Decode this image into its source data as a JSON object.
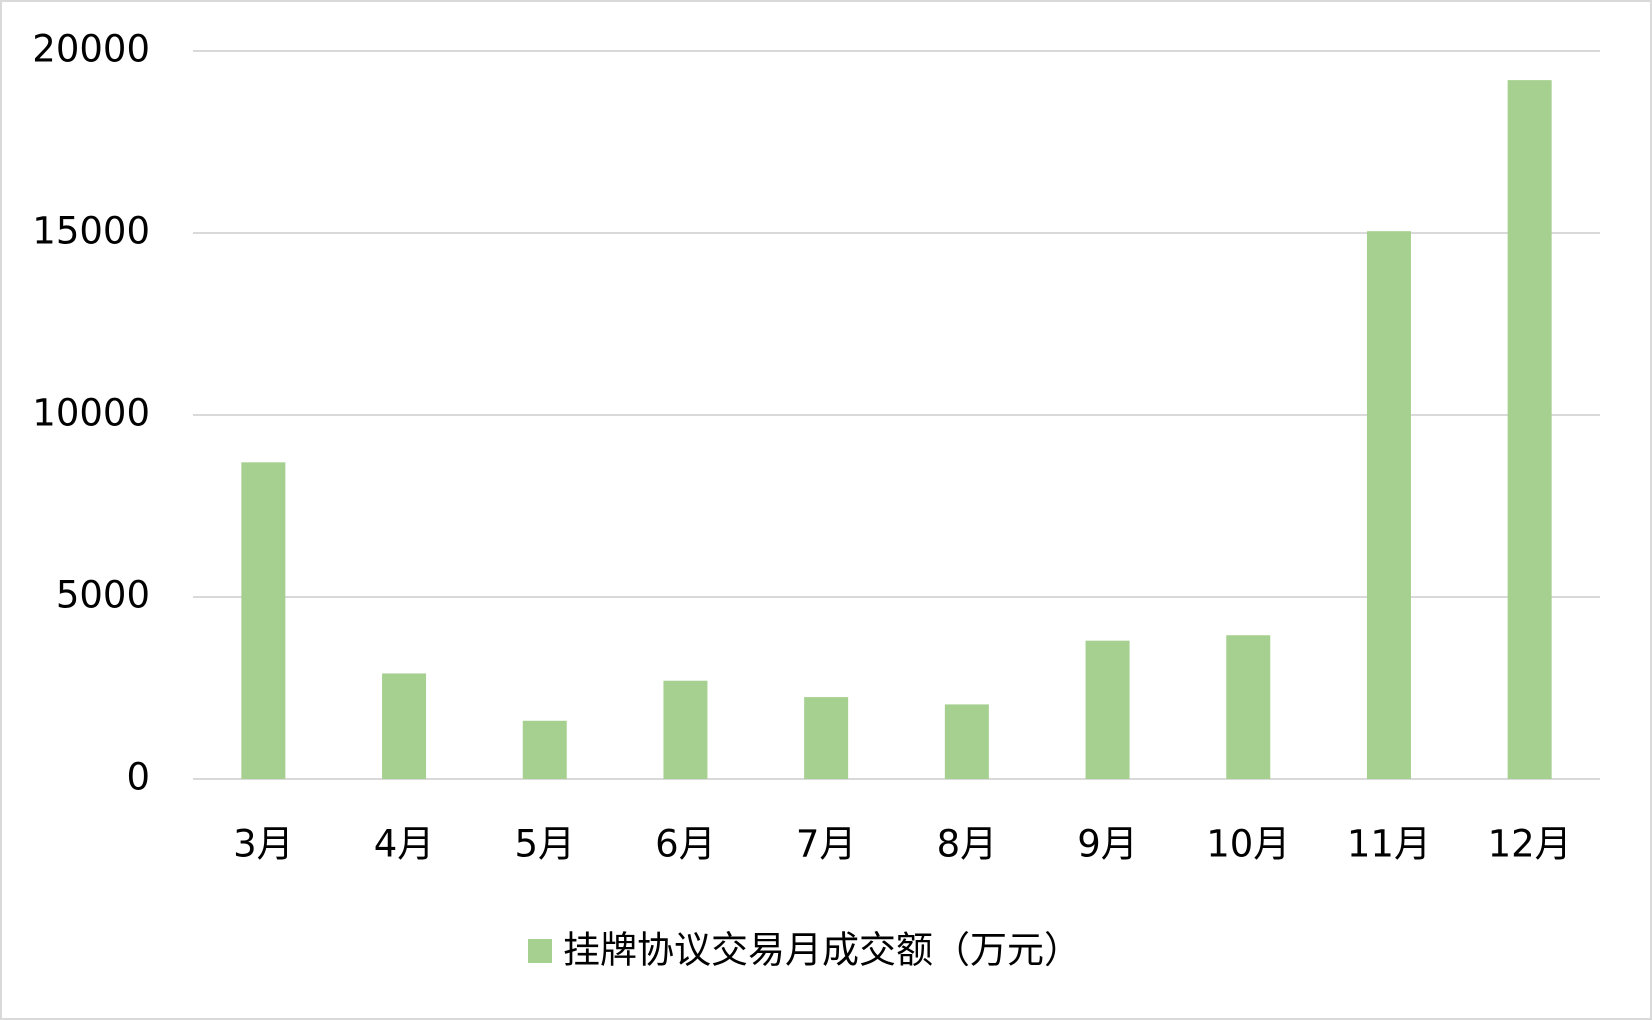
{
  "chart_data": {
    "type": "bar",
    "categories": [
      "3月",
      "4月",
      "5月",
      "6月",
      "7月",
      "8月",
      "9月",
      "10月",
      "11月",
      "12月"
    ],
    "series": [
      {
        "name": "挂牌协议交易月成交额（万元）",
        "color": "#a6d08f",
        "values": [
          8700,
          2900,
          1600,
          2700,
          2250,
          2050,
          3800,
          3950,
          15050,
          19200
        ]
      }
    ],
    "ylim": [
      0,
      20000
    ],
    "yticks": [
      0,
      5000,
      10000,
      15000,
      20000
    ],
    "grid": true,
    "legend": "bottom"
  }
}
